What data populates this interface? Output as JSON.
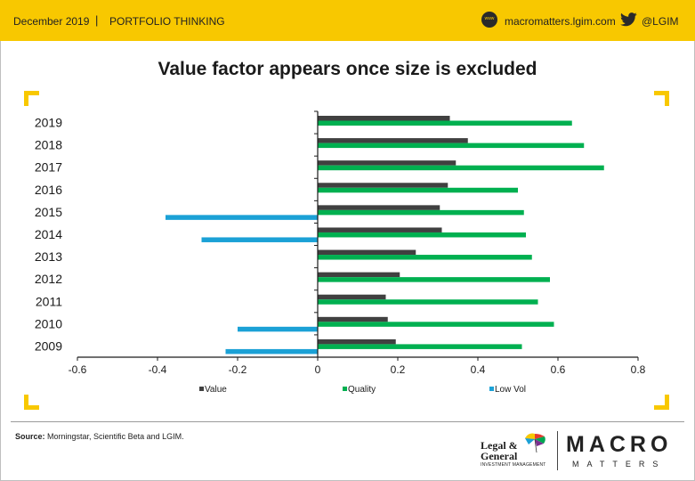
{
  "header": {
    "date": "December 2019",
    "separator": "|",
    "section": "PORTFOLIO THINKING",
    "www_icon_text": "www",
    "website": "macromatters.lgim.com",
    "twitter_handle": "@LGIM",
    "background_color": "#f8c800"
  },
  "footer": {
    "source_label": "Source:",
    "source_text": "Morningstar, Scientific Beta and LGIM.",
    "logo_lg_line1": "Legal &",
    "logo_lg_line2": "General",
    "logo_lg_sub": "INVESTMENT MANAGEMENT",
    "logo_macro": "MACRO",
    "logo_matters": "MATTERS"
  },
  "chart_data": {
    "type": "bar",
    "orientation": "horizontal",
    "title": "Value factor appears once size is excluded",
    "categories": [
      "2019",
      "2018",
      "2017",
      "2016",
      "2015",
      "2014",
      "2013",
      "2012",
      "2011",
      "2010",
      "2009"
    ],
    "series": [
      {
        "name": "Value",
        "color": "#404040",
        "values": [
          0.33,
          0.375,
          0.345,
          0.325,
          0.305,
          0.31,
          0.245,
          0.205,
          0.17,
          0.175,
          0.195
        ]
      },
      {
        "name": "Quality",
        "color": "#00b050",
        "values": [
          0.635,
          0.665,
          0.715,
          0.5,
          0.515,
          0.52,
          0.535,
          0.58,
          0.55,
          0.59,
          0.51
        ]
      },
      {
        "name": "Low Vol",
        "color": "#1ba1d6",
        "values": [
          0,
          0,
          0,
          0,
          -0.38,
          -0.29,
          0,
          0,
          0,
          -0.2,
          -0.23
        ]
      }
    ],
    "xlim": [
      -0.6,
      0.8
    ],
    "xticks": [
      "-0.6",
      "-0.4",
      "-0.2",
      "0",
      "0.2",
      "0.4",
      "0.6",
      "0.8"
    ],
    "xtick_values": [
      -0.6,
      -0.4,
      -0.2,
      0,
      0.2,
      0.4,
      0.6,
      0.8
    ],
    "legend_position": "bottom",
    "grid": false
  }
}
